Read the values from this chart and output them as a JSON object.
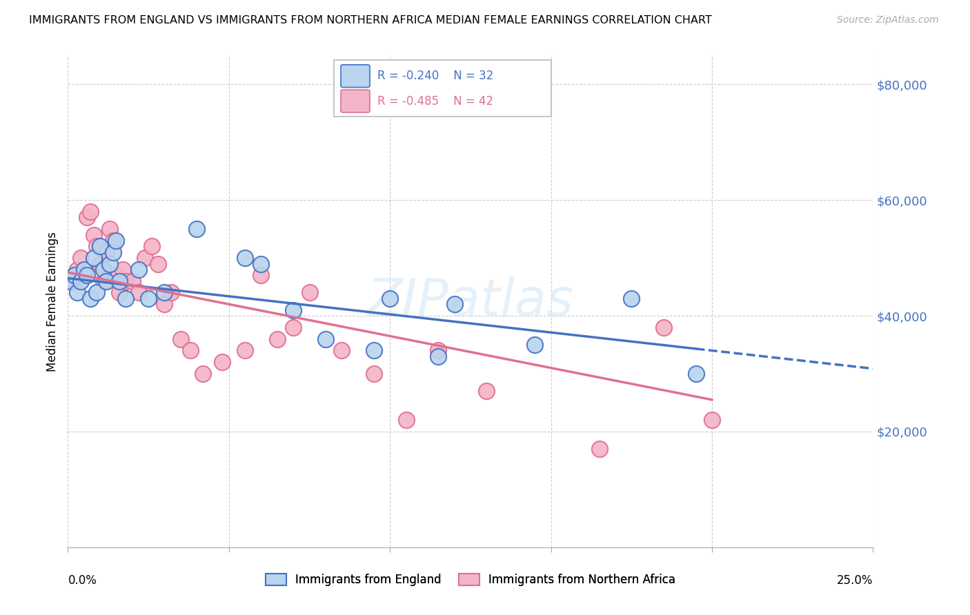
{
  "title": "IMMIGRANTS FROM ENGLAND VS IMMIGRANTS FROM NORTHERN AFRICA MEDIAN FEMALE EARNINGS CORRELATION CHART",
  "source": "Source: ZipAtlas.com",
  "ylabel": "Median Female Earnings",
  "y_ticks": [
    20000,
    40000,
    60000,
    80000
  ],
  "y_tick_labels": [
    "$20,000",
    "$40,000",
    "$60,000",
    "$80,000"
  ],
  "xlim": [
    0.0,
    0.25
  ],
  "ylim": [
    0,
    85000
  ],
  "blue_fill": "#b8d4ee",
  "pink_fill": "#f4b4c8",
  "blue_edge": "#4472c4",
  "pink_edge": "#e07090",
  "label_blue": "Immigrants from England",
  "label_pink": "Immigrants from Northern Africa",
  "england_x": [
    0.001,
    0.002,
    0.003,
    0.004,
    0.005,
    0.006,
    0.007,
    0.008,
    0.009,
    0.01,
    0.011,
    0.012,
    0.013,
    0.014,
    0.015,
    0.016,
    0.018,
    0.022,
    0.025,
    0.03,
    0.04,
    0.055,
    0.06,
    0.07,
    0.08,
    0.095,
    0.1,
    0.115,
    0.12,
    0.145,
    0.175,
    0.195
  ],
  "england_y": [
    46000,
    47000,
    44000,
    46000,
    48000,
    47000,
    43000,
    50000,
    44000,
    52000,
    48000,
    46000,
    49000,
    51000,
    53000,
    46000,
    43000,
    48000,
    43000,
    44000,
    55000,
    50000,
    49000,
    41000,
    36000,
    34000,
    43000,
    33000,
    42000,
    35000,
    43000,
    30000
  ],
  "n_africa_x": [
    0.001,
    0.002,
    0.003,
    0.004,
    0.005,
    0.006,
    0.007,
    0.008,
    0.009,
    0.01,
    0.011,
    0.012,
    0.013,
    0.014,
    0.015,
    0.016,
    0.017,
    0.018,
    0.02,
    0.022,
    0.024,
    0.026,
    0.028,
    0.03,
    0.032,
    0.035,
    0.038,
    0.042,
    0.048,
    0.055,
    0.06,
    0.065,
    0.07,
    0.075,
    0.085,
    0.095,
    0.105,
    0.115,
    0.13,
    0.165,
    0.185,
    0.2
  ],
  "n_africa_y": [
    46000,
    47000,
    48000,
    50000,
    47000,
    57000,
    58000,
    54000,
    52000,
    49000,
    46000,
    51000,
    55000,
    53000,
    47000,
    44000,
    48000,
    46000,
    46000,
    44000,
    50000,
    52000,
    49000,
    42000,
    44000,
    36000,
    34000,
    30000,
    32000,
    34000,
    47000,
    36000,
    38000,
    44000,
    34000,
    30000,
    22000,
    34000,
    27000,
    17000,
    38000,
    22000
  ],
  "blue_line_x0": 0.0,
  "blue_line_y0": 46500,
  "blue_line_x1": 0.2,
  "blue_line_y1": 34000,
  "pink_line_x0": 0.0,
  "pink_line_y0": 47500,
  "pink_line_x1": 0.25,
  "pink_line_y1": 20000
}
